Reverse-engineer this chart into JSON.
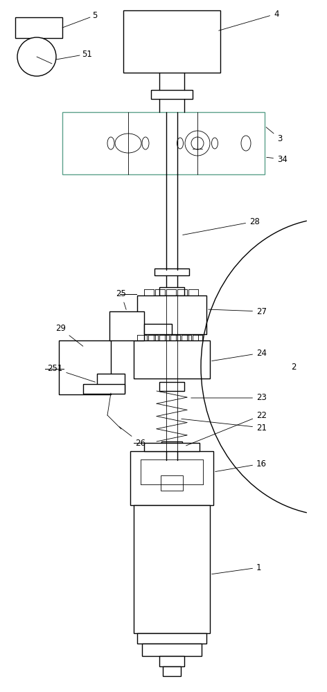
{
  "bg_color": "#ffffff",
  "line_color": "#000000",
  "lw": 1.0,
  "tlw": 0.6,
  "fig_width": 4.72,
  "fig_height": 10.0
}
